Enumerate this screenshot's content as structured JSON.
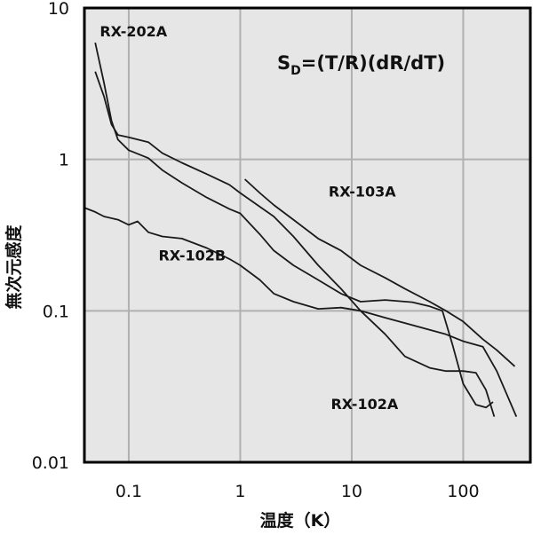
{
  "chart_data": {
    "type": "line",
    "x_scale": "log",
    "y_scale": "log",
    "xlim": [
      0.04,
      400
    ],
    "ylim": [
      0.01,
      10
    ],
    "grid": true,
    "xlabel": "温度（K）",
    "ylabel": "無次元感度",
    "x_ticks": [
      {
        "value": 0.1,
        "label": "0.1"
      },
      {
        "value": 1,
        "label": "1"
      },
      {
        "value": 10,
        "label": "10"
      },
      {
        "value": 100,
        "label": "100"
      }
    ],
    "y_ticks": [
      {
        "value": 0.01,
        "label": "0.01"
      },
      {
        "value": 0.1,
        "label": "0.1"
      },
      {
        "value": 1,
        "label": "1"
      },
      {
        "value": 10,
        "label": "10"
      }
    ],
    "formula": {
      "main": "S",
      "sub": "D",
      "rest": "=(T/R)(dR/dT)"
    },
    "series": [
      {
        "name": "RX-202A",
        "points": [
          [
            0.05,
            5.9
          ],
          [
            0.06,
            3.2
          ],
          [
            0.07,
            1.8
          ],
          [
            0.08,
            1.35
          ],
          [
            0.1,
            1.15
          ],
          [
            0.15,
            1.02
          ],
          [
            0.2,
            0.85
          ],
          [
            0.3,
            0.7
          ],
          [
            0.5,
            0.56
          ],
          [
            0.8,
            0.47
          ],
          [
            1.0,
            0.44
          ],
          [
            1.5,
            0.32
          ],
          [
            2,
            0.25
          ],
          [
            3,
            0.2
          ],
          [
            5,
            0.16
          ],
          [
            8,
            0.13
          ],
          [
            12,
            0.115
          ],
          [
            20,
            0.118
          ],
          [
            35,
            0.114
          ],
          [
            50,
            0.107
          ],
          [
            65,
            0.1
          ],
          [
            80,
            0.06
          ],
          [
            100,
            0.033
          ],
          [
            130,
            0.024
          ],
          [
            160,
            0.023
          ],
          [
            185,
            0.025
          ]
        ],
        "label_at": [
          0.055,
          6.5
        ]
      },
      {
        "name": "RX-102A",
        "points": [
          [
            0.05,
            3.8
          ],
          [
            0.06,
            2.6
          ],
          [
            0.07,
            1.7
          ],
          [
            0.08,
            1.45
          ],
          [
            0.1,
            1.4
          ],
          [
            0.15,
            1.3
          ],
          [
            0.2,
            1.1
          ],
          [
            0.3,
            0.95
          ],
          [
            0.5,
            0.8
          ],
          [
            0.8,
            0.68
          ],
          [
            1,
            0.6
          ],
          [
            2,
            0.42
          ],
          [
            3,
            0.31
          ],
          [
            5,
            0.2
          ],
          [
            8,
            0.14
          ],
          [
            12,
            0.1
          ],
          [
            20,
            0.07
          ],
          [
            30,
            0.05
          ],
          [
            50,
            0.042
          ],
          [
            70,
            0.04
          ],
          [
            100,
            0.04
          ],
          [
            130,
            0.039
          ],
          [
            160,
            0.03
          ],
          [
            190,
            0.02
          ]
        ],
        "label_at": [
          6.5,
          0.0225
        ]
      },
      {
        "name": "RX-103A",
        "points": [
          [
            1.1,
            0.74
          ],
          [
            1.5,
            0.6
          ],
          [
            2,
            0.5
          ],
          [
            3,
            0.4
          ],
          [
            5,
            0.3
          ],
          [
            8,
            0.25
          ],
          [
            12,
            0.2
          ],
          [
            20,
            0.165
          ],
          [
            30,
            0.14
          ],
          [
            50,
            0.115
          ],
          [
            70,
            0.1
          ],
          [
            100,
            0.085
          ],
          [
            150,
            0.065
          ],
          [
            200,
            0.055
          ],
          [
            290,
            0.043
          ]
        ],
        "label_at": [
          6.2,
          0.57
        ]
      },
      {
        "name": "RX-102B",
        "points": [
          [
            0.04,
            0.48
          ],
          [
            0.05,
            0.45
          ],
          [
            0.06,
            0.42
          ],
          [
            0.08,
            0.4
          ],
          [
            0.1,
            0.37
          ],
          [
            0.12,
            0.39
          ],
          [
            0.15,
            0.33
          ],
          [
            0.2,
            0.31
          ],
          [
            0.3,
            0.3
          ],
          [
            0.5,
            0.26
          ],
          [
            0.8,
            0.22
          ],
          [
            1,
            0.2
          ],
          [
            1.5,
            0.16
          ],
          [
            2,
            0.13
          ],
          [
            3,
            0.115
          ],
          [
            5,
            0.103
          ],
          [
            8,
            0.105
          ],
          [
            12,
            0.1
          ],
          [
            20,
            0.09
          ],
          [
            30,
            0.083
          ],
          [
            50,
            0.075
          ],
          [
            70,
            0.07
          ],
          [
            100,
            0.063
          ],
          [
            150,
            0.058
          ],
          [
            200,
            0.04
          ],
          [
            300,
            0.02
          ]
        ],
        "label_at": [
          0.185,
          0.215
        ]
      }
    ]
  }
}
